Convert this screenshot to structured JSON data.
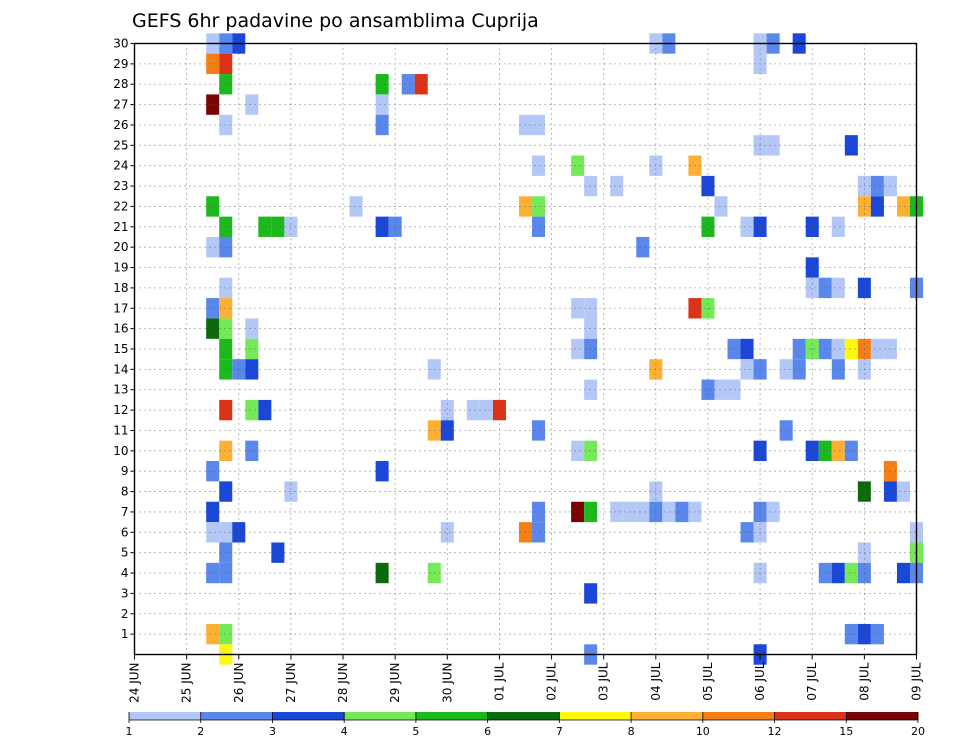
{
  "chart_data": {
    "type": "heatmap",
    "title": "GEFS 6hr padavine po ansamblima Cuprija",
    "x_tick_labels": [
      "24 JUN",
      "25 JUN",
      "26 JUN",
      "27 JUN",
      "28 JUN",
      "29 JUN",
      "30 JUN",
      "01 JUL",
      "02 JUL",
      "03 JUL",
      "04 JUL",
      "05 JUL",
      "06 JUL",
      "07 JUL",
      "08 JUL",
      "09 JUL"
    ],
    "y_tick_labels": [
      "1",
      "2",
      "3",
      "4",
      "5",
      "6",
      "7",
      "8",
      "9",
      "10",
      "11",
      "12",
      "13",
      "14",
      "15",
      "16",
      "17",
      "18",
      "19",
      "20",
      "21",
      "22",
      "23",
      "24",
      "25",
      "26",
      "27",
      "28",
      "29",
      "30"
    ],
    "ylim": [
      0,
      30
    ],
    "xlim_steps": [
      0,
      60
    ],
    "steps_per_day": 4,
    "grid": true,
    "legend_position": "bottom",
    "legend_thresholds": [
      "1",
      "2",
      "3",
      "4",
      "5",
      "6",
      "7",
      "8",
      "10",
      "12",
      "15",
      "20"
    ],
    "legend_colors": [
      "#b4c8f8",
      "#5a87ec",
      "#1a47d8",
      "#74ea58",
      "#1cb91c",
      "#0b6a0b",
      "#fef70e",
      "#fdb034",
      "#f57f17",
      "#dc3217",
      "#7a0404"
    ],
    "cells": [
      [
        6,
        30,
        0
      ],
      [
        7,
        30,
        1
      ],
      [
        8,
        30,
        2
      ],
      [
        40,
        30,
        0
      ],
      [
        41,
        30,
        1
      ],
      [
        48,
        30,
        0
      ],
      [
        49,
        30,
        1
      ],
      [
        51,
        30,
        2
      ],
      [
        6,
        29,
        8
      ],
      [
        7,
        29,
        9
      ],
      [
        48,
        29,
        0
      ],
      [
        7,
        28,
        4
      ],
      [
        19,
        28,
        4
      ],
      [
        21,
        28,
        1
      ],
      [
        22,
        28,
        9
      ],
      [
        6,
        27,
        10
      ],
      [
        9,
        27,
        0
      ],
      [
        19,
        27,
        0
      ],
      [
        7,
        26,
        0
      ],
      [
        19,
        26,
        1
      ],
      [
        30,
        26,
        0
      ],
      [
        31,
        26,
        0
      ],
      [
        48,
        25,
        0
      ],
      [
        49,
        25,
        0
      ],
      [
        55,
        25,
        2
      ],
      [
        31,
        24,
        0
      ],
      [
        34,
        24,
        3
      ],
      [
        40,
        24,
        0
      ],
      [
        43,
        24,
        7
      ],
      [
        35,
        23,
        0
      ],
      [
        37,
        23,
        0
      ],
      [
        44,
        23,
        2
      ],
      [
        56,
        23,
        0
      ],
      [
        57,
        23,
        1
      ],
      [
        58,
        23,
        0
      ],
      [
        6,
        22,
        4
      ],
      [
        17,
        22,
        0
      ],
      [
        30,
        22,
        7
      ],
      [
        31,
        22,
        3
      ],
      [
        45,
        22,
        0
      ],
      [
        56,
        22,
        7
      ],
      [
        57,
        22,
        2
      ],
      [
        59,
        22,
        7
      ],
      [
        60,
        22,
        4
      ],
      [
        7,
        21,
        4
      ],
      [
        10,
        21,
        4
      ],
      [
        11,
        21,
        4
      ],
      [
        12,
        21,
        0
      ],
      [
        19,
        21,
        2
      ],
      [
        20,
        21,
        1
      ],
      [
        31,
        21,
        1
      ],
      [
        44,
        21,
        4
      ],
      [
        47,
        21,
        0
      ],
      [
        48,
        21,
        2
      ],
      [
        52,
        21,
        2
      ],
      [
        54,
        21,
        0
      ],
      [
        6,
        20,
        0
      ],
      [
        7,
        20,
        1
      ],
      [
        39,
        20,
        1
      ],
      [
        52,
        19,
        2
      ],
      [
        7,
        18,
        0
      ],
      [
        52,
        18,
        0
      ],
      [
        53,
        18,
        1
      ],
      [
        54,
        18,
        0
      ],
      [
        56,
        18,
        2
      ],
      [
        60,
        18,
        1
      ],
      [
        6,
        17,
        1
      ],
      [
        7,
        17,
        7
      ],
      [
        34,
        17,
        0
      ],
      [
        35,
        17,
        0
      ],
      [
        43,
        17,
        9
      ],
      [
        44,
        17,
        3
      ],
      [
        6,
        16,
        5
      ],
      [
        7,
        16,
        3
      ],
      [
        9,
        16,
        0
      ],
      [
        35,
        16,
        0
      ],
      [
        7,
        15,
        4
      ],
      [
        9,
        15,
        3
      ],
      [
        34,
        15,
        0
      ],
      [
        35,
        15,
        1
      ],
      [
        46,
        15,
        1
      ],
      [
        47,
        15,
        2
      ],
      [
        51,
        15,
        1
      ],
      [
        52,
        15,
        3
      ],
      [
        53,
        15,
        1
      ],
      [
        54,
        15,
        0
      ],
      [
        55,
        15,
        6
      ],
      [
        56,
        15,
        8
      ],
      [
        57,
        15,
        0
      ],
      [
        58,
        15,
        0
      ],
      [
        7,
        14,
        4
      ],
      [
        8,
        14,
        1
      ],
      [
        9,
        14,
        2
      ],
      [
        23,
        14,
        0
      ],
      [
        40,
        14,
        7
      ],
      [
        47,
        14,
        0
      ],
      [
        48,
        14,
        1
      ],
      [
        50,
        14,
        0
      ],
      [
        51,
        14,
        1
      ],
      [
        54,
        14,
        1
      ],
      [
        56,
        14,
        0
      ],
      [
        35,
        13,
        0
      ],
      [
        44,
        13,
        1
      ],
      [
        45,
        13,
        0
      ],
      [
        46,
        13,
        0
      ],
      [
        7,
        12,
        9
      ],
      [
        9,
        12,
        3
      ],
      [
        10,
        12,
        2
      ],
      [
        24,
        12,
        0
      ],
      [
        26,
        12,
        0
      ],
      [
        27,
        12,
        0
      ],
      [
        28,
        12,
        9
      ],
      [
        23,
        11,
        7
      ],
      [
        24,
        11,
        2
      ],
      [
        31,
        11,
        1
      ],
      [
        50,
        11,
        1
      ],
      [
        7,
        10,
        7
      ],
      [
        9,
        10,
        1
      ],
      [
        34,
        10,
        0
      ],
      [
        35,
        10,
        3
      ],
      [
        48,
        10,
        2
      ],
      [
        52,
        10,
        2
      ],
      [
        53,
        10,
        4
      ],
      [
        54,
        10,
        7
      ],
      [
        55,
        10,
        1
      ],
      [
        6,
        9,
        1
      ],
      [
        19,
        9,
        2
      ],
      [
        58,
        9,
        8
      ],
      [
        7,
        8,
        2
      ],
      [
        12,
        8,
        0
      ],
      [
        40,
        8,
        0
      ],
      [
        56,
        8,
        5
      ],
      [
        58,
        8,
        2
      ],
      [
        59,
        8,
        0
      ],
      [
        6,
        7,
        2
      ],
      [
        31,
        7,
        1
      ],
      [
        34,
        7,
        10
      ],
      [
        35,
        7,
        4
      ],
      [
        37,
        7,
        0
      ],
      [
        38,
        7,
        0
      ],
      [
        39,
        7,
        0
      ],
      [
        40,
        7,
        1
      ],
      [
        41,
        7,
        0
      ],
      [
        42,
        7,
        1
      ],
      [
        43,
        7,
        0
      ],
      [
        48,
        7,
        1
      ],
      [
        49,
        7,
        0
      ],
      [
        6,
        6,
        0
      ],
      [
        7,
        6,
        0
      ],
      [
        8,
        6,
        2
      ],
      [
        24,
        6,
        0
      ],
      [
        30,
        6,
        8
      ],
      [
        31,
        6,
        1
      ],
      [
        47,
        6,
        1
      ],
      [
        48,
        6,
        0
      ],
      [
        60,
        6,
        0
      ],
      [
        7,
        5,
        1
      ],
      [
        11,
        5,
        2
      ],
      [
        56,
        5,
        0
      ],
      [
        60,
        5,
        3
      ],
      [
        6,
        4,
        1
      ],
      [
        7,
        4,
        1
      ],
      [
        19,
        4,
        5
      ],
      [
        23,
        4,
        3
      ],
      [
        48,
        4,
        0
      ],
      [
        53,
        4,
        1
      ],
      [
        54,
        4,
        2
      ],
      [
        55,
        4,
        3
      ],
      [
        56,
        4,
        1
      ],
      [
        59,
        4,
        2
      ],
      [
        60,
        4,
        1
      ],
      [
        35,
        3,
        2
      ],
      [
        6,
        1,
        7
      ],
      [
        7,
        1,
        3
      ],
      [
        55,
        1,
        1
      ],
      [
        56,
        1,
        2
      ],
      [
        57,
        1,
        1
      ],
      [
        7,
        0,
        6
      ],
      [
        35,
        0,
        1
      ],
      [
        48,
        0,
        2
      ]
    ]
  }
}
